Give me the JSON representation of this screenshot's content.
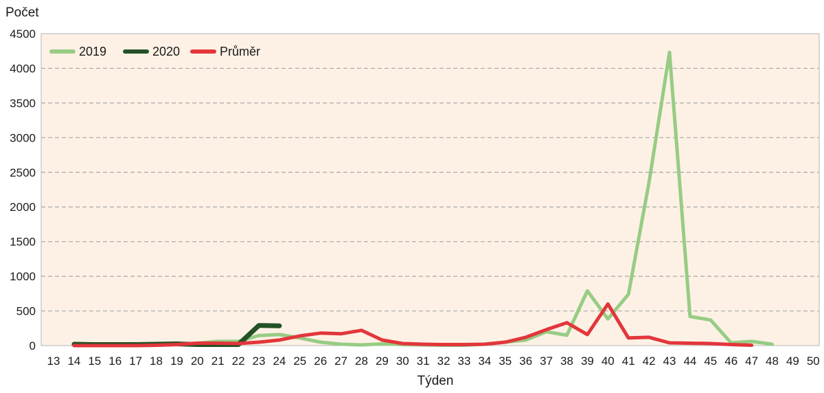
{
  "chart_data": {
    "type": "line",
    "title": "",
    "xlabel": "Týden",
    "ylabel": "Počet",
    "x": [
      13,
      14,
      15,
      16,
      17,
      18,
      19,
      20,
      21,
      22,
      23,
      24,
      25,
      26,
      27,
      28,
      29,
      30,
      31,
      32,
      33,
      34,
      35,
      36,
      37,
      38,
      39,
      40,
      41,
      42,
      43,
      44,
      45,
      46,
      47,
      48,
      49,
      50
    ],
    "xlim": [
      13,
      50
    ],
    "ylim": [
      0,
      4500
    ],
    "yticks": [
      0,
      500,
      1000,
      1500,
      2000,
      2500,
      3000,
      3500,
      4000,
      4500
    ],
    "grid": true,
    "legend_position": "top-left",
    "background": "#fdf1e5",
    "series": [
      {
        "name": "2019",
        "color": "#97cc84",
        "points": [
          [
            14,
            0
          ],
          [
            15,
            0
          ],
          [
            16,
            0
          ],
          [
            17,
            0
          ],
          [
            18,
            5
          ],
          [
            19,
            20
          ],
          [
            20,
            35
          ],
          [
            21,
            60
          ],
          [
            22,
            60
          ],
          [
            23,
            145
          ],
          [
            24,
            160
          ],
          [
            25,
            110
          ],
          [
            26,
            50
          ],
          [
            27,
            20
          ],
          [
            28,
            10
          ],
          [
            29,
            25
          ],
          [
            30,
            15
          ],
          [
            31,
            10
          ],
          [
            32,
            5
          ],
          [
            33,
            5
          ],
          [
            34,
            20
          ],
          [
            35,
            50
          ],
          [
            36,
            80
          ],
          [
            37,
            200
          ],
          [
            38,
            150
          ],
          [
            39,
            790
          ],
          [
            40,
            385
          ],
          [
            41,
            740
          ],
          [
            42,
            2350
          ],
          [
            43,
            4230
          ],
          [
            44,
            420
          ],
          [
            45,
            370
          ],
          [
            46,
            40
          ],
          [
            47,
            60
          ],
          [
            48,
            20
          ]
        ]
      },
      {
        "name": "2020",
        "color": "#245126",
        "points": [
          [
            14,
            20
          ],
          [
            15,
            15
          ],
          [
            16,
            15
          ],
          [
            17,
            15
          ],
          [
            18,
            20
          ],
          [
            19,
            25
          ],
          [
            20,
            15
          ],
          [
            21,
            15
          ],
          [
            22,
            15
          ],
          [
            23,
            290
          ],
          [
            24,
            285
          ]
        ]
      },
      {
        "name": "Průměr",
        "color": "#e2363b",
        "points": [
          [
            14,
            0
          ],
          [
            15,
            0
          ],
          [
            16,
            0
          ],
          [
            17,
            0
          ],
          [
            18,
            5
          ],
          [
            19,
            15
          ],
          [
            20,
            35
          ],
          [
            21,
            35
          ],
          [
            22,
            30
          ],
          [
            23,
            50
          ],
          [
            24,
            80
          ],
          [
            25,
            140
          ],
          [
            26,
            180
          ],
          [
            27,
            170
          ],
          [
            28,
            220
          ],
          [
            29,
            80
          ],
          [
            30,
            30
          ],
          [
            31,
            20
          ],
          [
            32,
            15
          ],
          [
            33,
            15
          ],
          [
            34,
            20
          ],
          [
            35,
            50
          ],
          [
            36,
            120
          ],
          [
            37,
            230
          ],
          [
            38,
            330
          ],
          [
            39,
            160
          ],
          [
            40,
            600
          ],
          [
            41,
            110
          ],
          [
            42,
            120
          ],
          [
            43,
            40
          ],
          [
            44,
            35
          ],
          [
            45,
            30
          ],
          [
            46,
            15
          ],
          [
            47,
            5
          ]
        ]
      }
    ]
  }
}
